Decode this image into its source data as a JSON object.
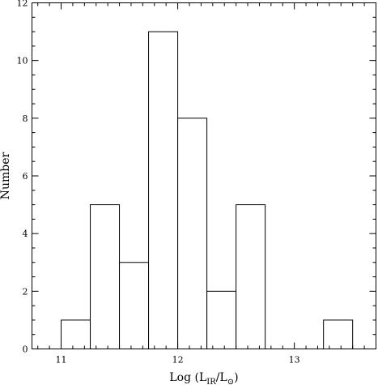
{
  "chart_data": {
    "type": "bar",
    "bins": [
      {
        "x0": 11.0,
        "x1": 11.25,
        "count": 1
      },
      {
        "x0": 11.25,
        "x1": 11.5,
        "count": 5
      },
      {
        "x0": 11.5,
        "x1": 11.75,
        "count": 3
      },
      {
        "x0": 11.75,
        "x1": 12.0,
        "count": 11
      },
      {
        "x0": 12.0,
        "x1": 12.25,
        "count": 8
      },
      {
        "x0": 12.25,
        "x1": 12.5,
        "count": 2
      },
      {
        "x0": 12.5,
        "x1": 12.75,
        "count": 5
      },
      {
        "x0": 12.75,
        "x1": 13.0,
        "count": 0
      },
      {
        "x0": 13.0,
        "x1": 13.25,
        "count": 0
      },
      {
        "x0": 13.25,
        "x1": 13.5,
        "count": 1
      }
    ],
    "xlim": [
      10.75,
      13.7
    ],
    "ylim": [
      0,
      12
    ],
    "xticks": [
      11,
      12,
      13
    ],
    "yticks": [
      0,
      2,
      4,
      6,
      8,
      10,
      12
    ],
    "xlabel_main": "Log (L",
    "xlabel_sub1": "IR",
    "xlabel_mid": "/L",
    "xlabel_sub2": "⊙",
    "xlabel_end": ")",
    "ylabel": "Number",
    "grid": false
  }
}
